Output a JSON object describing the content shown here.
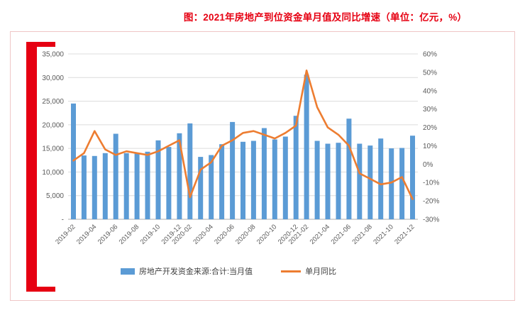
{
  "title": "图：2021年房地产到位资金单月值及同比增速（单位：亿元，%）",
  "colors": {
    "accent_red": "#E60012",
    "bar_blue": "#5B9BD5",
    "line_orange": "#ED7D31",
    "card_border_pink": "#EFC6C6",
    "axis_text_gray": "#595959",
    "gridline_gray": "#DCDCDC"
  },
  "chart_data": {
    "type": "bar",
    "subtype": "bar+line dual-axis",
    "title": "图：2021年房地产到位资金单月值及同比增速（单位：亿元，%）",
    "xlabel": "",
    "ylabel_left": "亿元",
    "ylabel_right": "%",
    "grid": "horizontal",
    "legend_position": "bottom",
    "categories": [
      "2019-02",
      "2019-03",
      "2019-04",
      "2019-05",
      "2019-06",
      "2019-07",
      "2019-08",
      "2019-09",
      "2019-10",
      "2019-11",
      "2019-12",
      "2020-02",
      "2020-03",
      "2020-04",
      "2020-05",
      "2020-06",
      "2020-07",
      "2020-08",
      "2020-09",
      "2020-10",
      "2020-11",
      "2020-12",
      "2021-02",
      "2021-03",
      "2021-04",
      "2021-05",
      "2021-06",
      "2021-07",
      "2021-08",
      "2021-09",
      "2021-10",
      "2021-11",
      "2021-12"
    ],
    "x_tick_labels": [
      "2019-02",
      "2019-04",
      "2019-06",
      "2019-08",
      "2019-10",
      "2019-12",
      "2020-02",
      "2020-04",
      "2020-06",
      "2020-08",
      "2020-10",
      "2020-12",
      "2021-02",
      "2021-04",
      "2021-06",
      "2021-08",
      "2021-10",
      "2021-12"
    ],
    "series": [
      {
        "name": "房地产开发资金来源:合计:当月值",
        "type": "bar",
        "axis": "left",
        "color": "#5B9BD5",
        "values": [
          24500,
          13500,
          13400,
          14000,
          18100,
          14000,
          13900,
          14300,
          16700,
          15300,
          18200,
          20300,
          13200,
          13600,
          15900,
          20600,
          16400,
          16600,
          19300,
          16900,
          17500,
          21900,
          30600,
          16600,
          16000,
          16200,
          21300,
          16000,
          15600,
          17100,
          15000,
          15100,
          17700
        ]
      },
      {
        "name": "单月同比",
        "type": "line",
        "axis": "right",
        "color": "#ED7D31",
        "values": [
          2,
          6,
          18,
          8,
          5,
          7,
          6,
          5,
          7,
          10,
          13,
          -18,
          -3,
          1,
          10,
          13,
          17,
          18,
          16,
          14,
          17,
          21,
          51,
          31,
          20,
          16,
          10,
          -5,
          -8,
          -11,
          -10,
          -7,
          -19
        ]
      }
    ],
    "left_axis": {
      "min": 0,
      "max": 35000,
      "step": 5000,
      "tick_labels": [
        "35,000",
        "30,000",
        "25,000",
        "20,000",
        "15,000",
        "10,000",
        "5,000",
        "-"
      ]
    },
    "right_axis": {
      "min": -30,
      "max": 60,
      "step": 10,
      "tick_labels": [
        "60%",
        "50%",
        "40%",
        "30%",
        "20%",
        "10%",
        "0%",
        "-10%",
        "-20%",
        "-30%"
      ]
    }
  }
}
